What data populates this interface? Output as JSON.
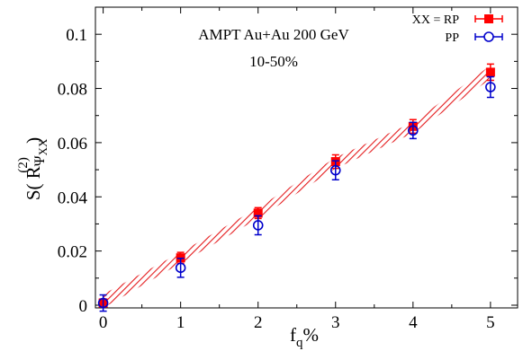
{
  "chart_data": {
    "type": "scatter",
    "x": [
      0,
      1,
      2,
      3,
      4,
      5
    ],
    "xlim": [
      -0.1,
      5.35
    ],
    "ylim": [
      -0.001,
      0.11
    ],
    "xticks": [
      "0",
      "1",
      "2",
      "3",
      "4",
      "5"
    ],
    "yticks": [
      "0",
      "0.02",
      "0.04",
      "0.06",
      "0.08",
      "0.1"
    ],
    "xtick_values": [
      0,
      1,
      2,
      3,
      4,
      5
    ],
    "ytick_values": [
      0,
      0.02,
      0.04,
      0.06,
      0.08,
      0.1
    ],
    "xlabel_main": "f",
    "xlabel_sub": "q",
    "xlabel_tail": "%",
    "ylabel": {
      "pre": "S( R",
      "sub": "Ψ",
      "subsub": "XX",
      "sup": "(2)",
      "post": " )"
    },
    "annotations": [
      "AMPT Au+Au 200 GeV",
      "10-50%"
    ],
    "legend_position": "top-right",
    "band": {
      "color": "#e41a1c",
      "x": [
        0,
        1,
        2,
        3,
        4,
        5
      ],
      "lower": [
        -0.001,
        0.0155,
        0.032,
        0.0505,
        0.0635,
        0.0835
      ],
      "upper": [
        0.004,
        0.0195,
        0.036,
        0.0545,
        0.0675,
        0.0885
      ]
    },
    "series": [
      {
        "name": "XX = RP",
        "color": "#ff0000",
        "marker": "filled-square",
        "y": [
          0.0008,
          0.0175,
          0.034,
          0.053,
          0.066,
          0.086
        ],
        "err": [
          0.0015,
          0.002,
          0.002,
          0.0025,
          0.0025,
          0.003
        ]
      },
      {
        "name": "PP",
        "color": "#0000cc",
        "marker": "open-circle",
        "y": [
          0.0008,
          0.0138,
          0.0295,
          0.0498,
          0.0645,
          0.0805
        ],
        "err": [
          0.003,
          0.0035,
          0.0035,
          0.0035,
          0.003,
          0.0038
        ]
      }
    ]
  }
}
